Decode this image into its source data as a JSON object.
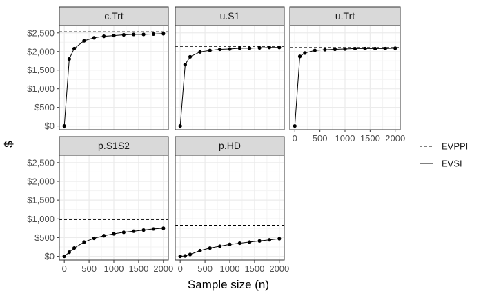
{
  "chart_data": {
    "type": "line",
    "xlabel": "Sample size (n)",
    "ylabel": "$",
    "x": [
      0,
      100,
      200,
      400,
      600,
      800,
      1000,
      1200,
      1400,
      1600,
      1800,
      2000
    ],
    "x_ticks": [
      0,
      500,
      1000,
      1500,
      2000
    ],
    "x_tick_labels": [
      "0",
      "500",
      "1000",
      "1500",
      "2000"
    ],
    "ylim": [
      -100,
      2700
    ],
    "y_ticks": [
      0,
      500,
      1000,
      1500,
      2000,
      2500
    ],
    "y_tick_labels": [
      "$0",
      "$500",
      "$1,000",
      "$1,500",
      "$2,000",
      "$2,500"
    ],
    "grid": true,
    "legend_position": "right",
    "legend": [
      {
        "label": "EVPPI",
        "linetype": "dashed"
      },
      {
        "label": "EVSI",
        "linetype": "solid"
      }
    ],
    "colors": {
      "panel_border": "#333333",
      "strip_fill": "#d9d9d9",
      "grid_major": "#ebebeb",
      "grid_minor": "#f3f3f3",
      "line": "#000000"
    },
    "panels": [
      {
        "name": "c.Trt",
        "evppi": 2530,
        "evsi": [
          0,
          1800,
          2080,
          2290,
          2370,
          2410,
          2430,
          2450,
          2460,
          2460,
          2470,
          2480
        ]
      },
      {
        "name": "u.S1",
        "evppi": 2140,
        "evsi": [
          0,
          1650,
          1860,
          1990,
          2030,
          2060,
          2070,
          2090,
          2090,
          2100,
          2110,
          2110
        ]
      },
      {
        "name": "u.Trt",
        "evppi": 2110,
        "evsi": [
          0,
          1870,
          1960,
          2030,
          2050,
          2060,
          2070,
          2080,
          2080,
          2080,
          2080,
          2090
        ]
      },
      {
        "name": "p.S1S2",
        "evppi": 980,
        "evsi": [
          0,
          110,
          220,
          380,
          480,
          550,
          600,
          640,
          670,
          700,
          730,
          750
        ]
      },
      {
        "name": "p.HD",
        "evppi": 830,
        "evsi": [
          0,
          10,
          50,
          150,
          220,
          270,
          320,
          350,
          380,
          410,
          440,
          470
        ]
      }
    ]
  }
}
